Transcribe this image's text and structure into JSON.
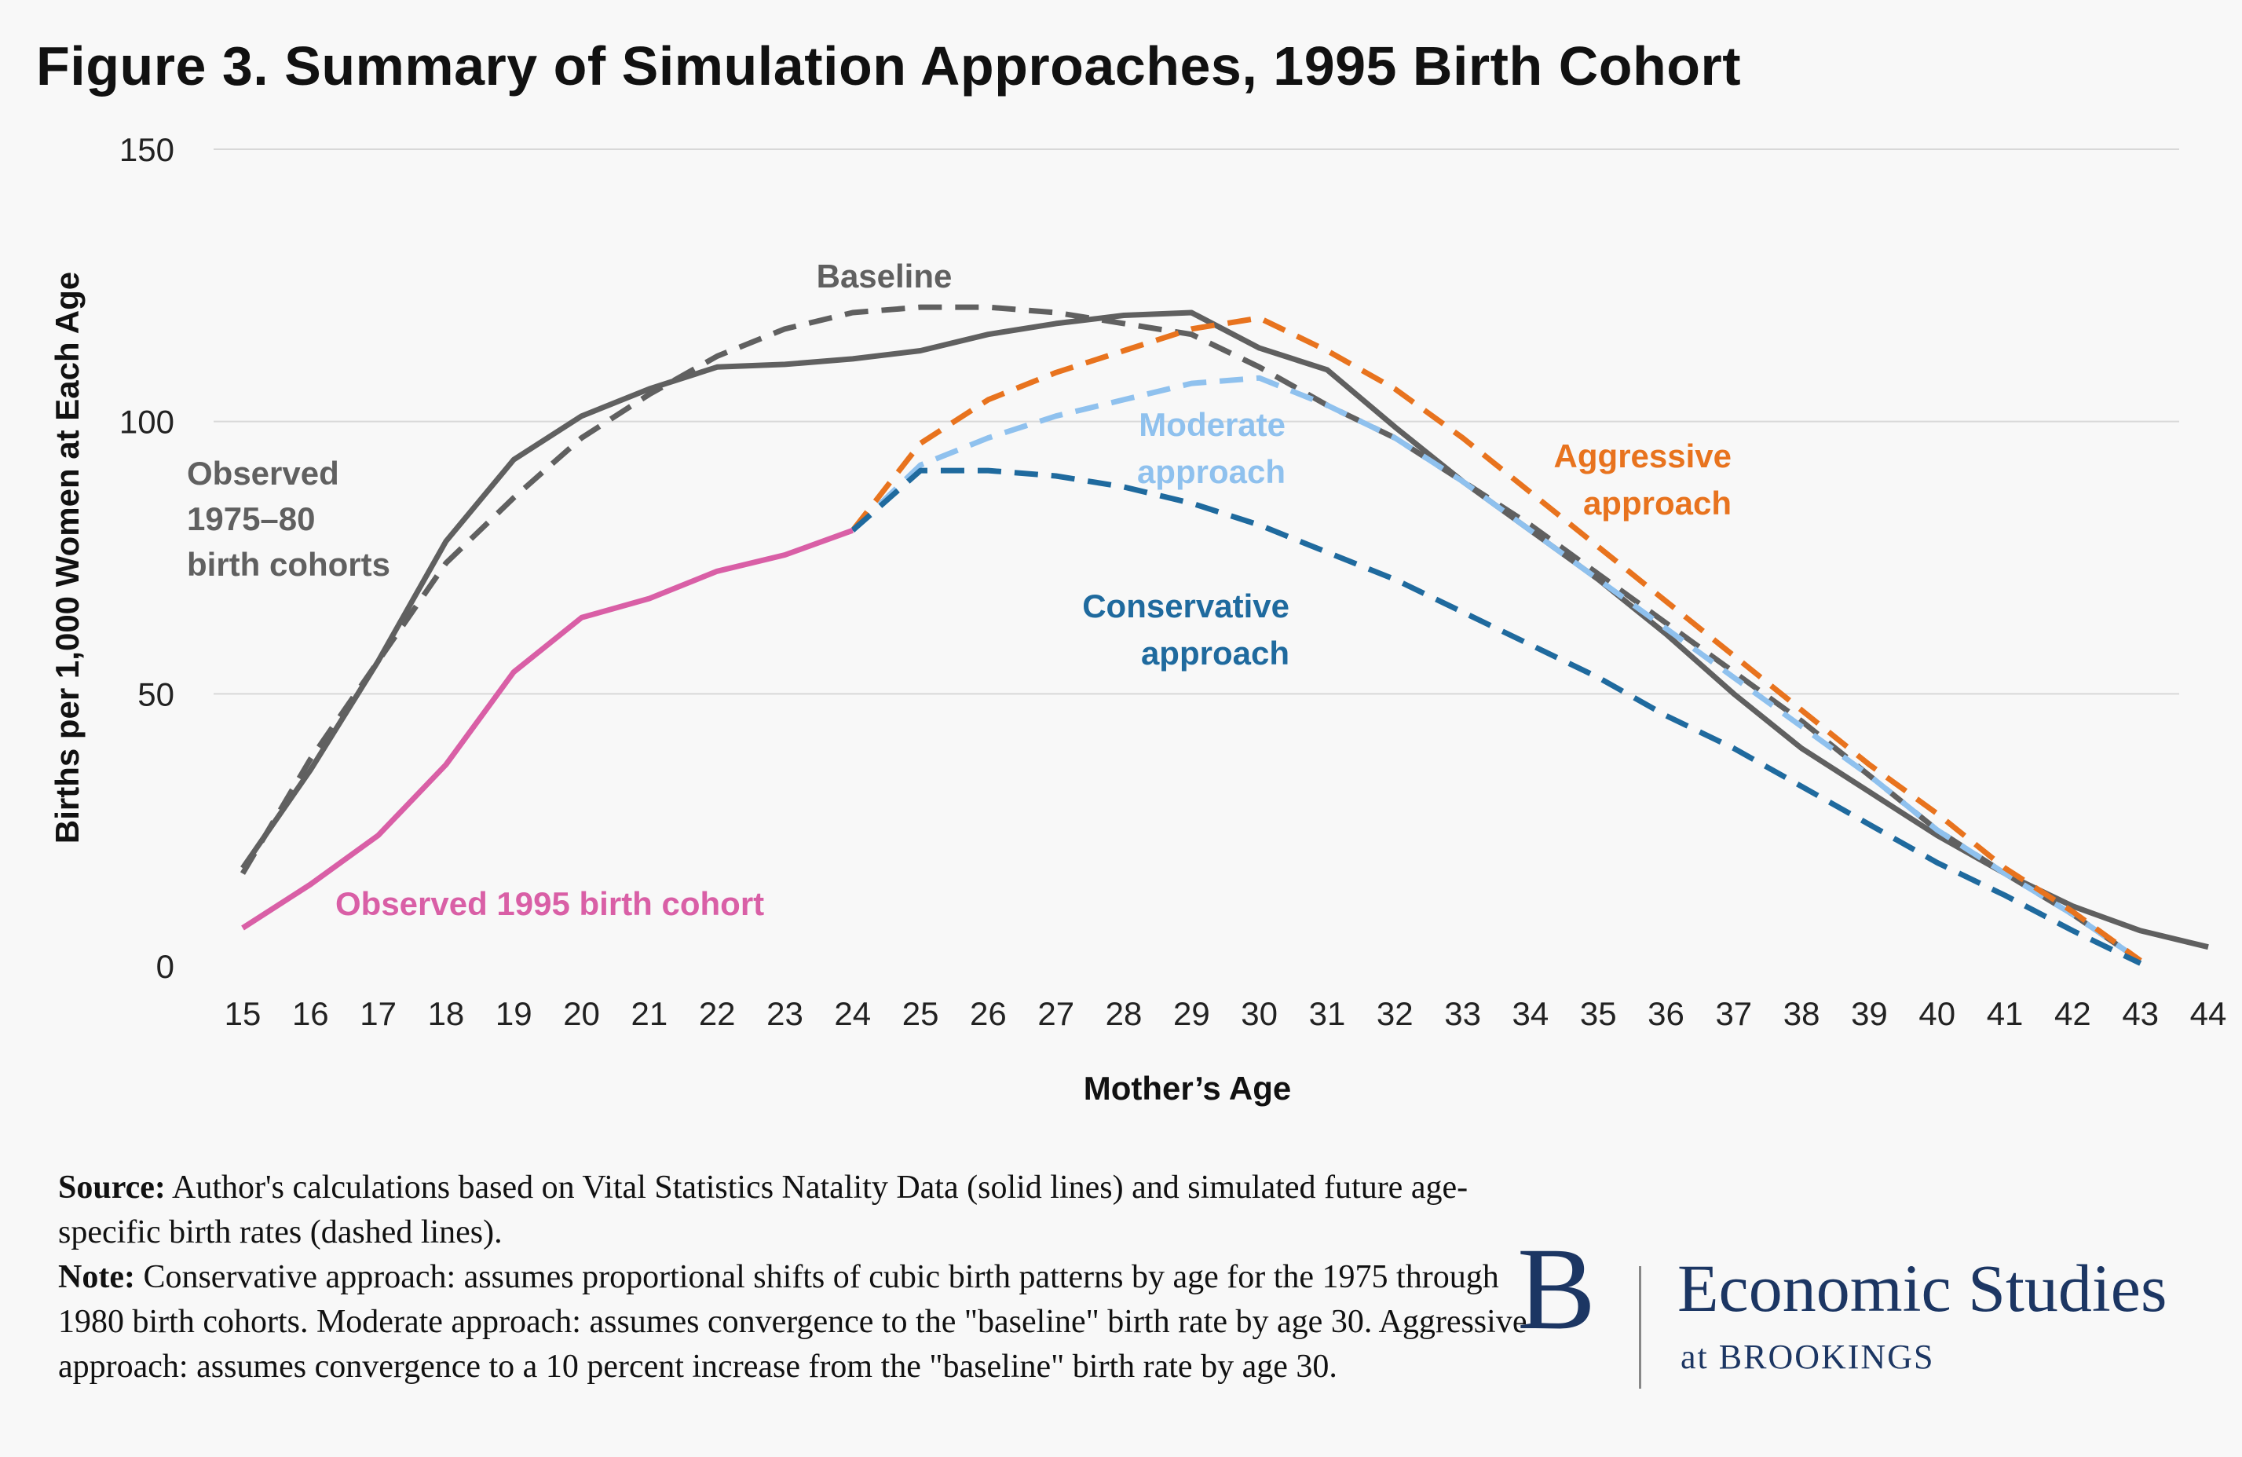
{
  "title": "Figure 3. Summary of Simulation Approaches, 1995 Birth Cohort",
  "notes": {
    "source_label": "Source:",
    "source_text": " Author's calculations based on Vital Statistics Natality Data (solid lines) and simulated future age-specific birth rates (dashed lines).",
    "note_label": "Note:",
    "note_text": " Conservative approach: assumes proportional shifts of cubic birth patterns by age for the 1975 through 1980 birth cohorts. Moderate approach: assumes convergence to the \"baseline\" birth rate by age 30. Aggressive approach: assumes convergence to a 10 percent increase from the \"baseline\" birth rate by age 30."
  },
  "logo": {
    "letter": "B",
    "main": "Economic Studies",
    "sub": "at BROOKINGS"
  },
  "chart_data": {
    "type": "line",
    "title": "Figure 3. Summary of Simulation Approaches, 1995 Birth Cohort",
    "xlabel": "Mother’s Age",
    "ylabel": "Births per 1,000 Women at Each Age",
    "xlim": [
      15,
      44
    ],
    "ylim": [
      0,
      150
    ],
    "yticks": [
      0,
      50,
      100,
      150
    ],
    "xticks": [
      15,
      16,
      17,
      18,
      19,
      20,
      21,
      22,
      23,
      24,
      25,
      26,
      27,
      28,
      29,
      30,
      31,
      32,
      33,
      34,
      35,
      36,
      37,
      38,
      39,
      40,
      41,
      42,
      43,
      44
    ],
    "grid": "horizontal",
    "legend": "inline labels",
    "series": [
      {
        "name": "Observed 1975–80 birth cohorts",
        "label_lines": [
          "Observed",
          "1975–80",
          "birth cohorts"
        ],
        "color": "#606060",
        "style": "solid",
        "x": [
          15,
          16,
          17,
          18,
          19,
          20,
          21,
          22,
          23,
          24,
          25,
          26,
          27,
          28,
          29,
          30,
          31,
          32,
          33,
          34,
          35,
          36,
          37,
          38,
          39,
          40,
          41,
          42,
          43,
          44
        ],
        "values": [
          18,
          36,
          56,
          78,
          93,
          101,
          106,
          110,
          110.5,
          111.5,
          113,
          116,
          118,
          119.5,
          120,
          113.5,
          109.5,
          99,
          89,
          80,
          71,
          61,
          50,
          40,
          32,
          24,
          17,
          11,
          6.5,
          3.5
        ]
      },
      {
        "name": "Baseline",
        "label_lines": [
          "Baseline"
        ],
        "color": "#606060",
        "style": "dashed",
        "x": [
          15,
          16,
          17,
          18,
          19,
          20,
          21,
          22,
          23,
          24,
          25,
          26,
          27,
          28,
          29,
          30,
          31,
          32,
          33,
          34,
          35,
          36,
          37,
          38,
          39,
          40,
          41,
          42,
          43
        ],
        "values": [
          17,
          38,
          56,
          74,
          86,
          97,
          105,
          112,
          117,
          120,
          121,
          121,
          120,
          118,
          116,
          110,
          103,
          97,
          89,
          81,
          72,
          63,
          54,
          45,
          35,
          25,
          17,
          9.5,
          1
        ]
      },
      {
        "name": "Observed 1995 birth cohort",
        "label_lines": [
          "Observed 1995 birth cohort"
        ],
        "color": "#d95fa6",
        "style": "solid",
        "x": [
          15,
          16,
          17,
          18,
          19,
          20,
          21,
          22,
          23,
          24
        ],
        "values": [
          7,
          15,
          24,
          37,
          54,
          64,
          67.5,
          72.5,
          75.5,
          80
        ]
      },
      {
        "name": "Conservative approach",
        "label_lines": [
          "Conservative",
          "approach"
        ],
        "color": "#1f6a9e",
        "style": "dashed",
        "x": [
          24,
          25,
          26,
          27,
          28,
          29,
          30,
          31,
          32,
          33,
          34,
          35,
          36,
          37,
          38,
          39,
          40,
          41,
          42,
          43
        ],
        "values": [
          80,
          91,
          91,
          90,
          88,
          85,
          81,
          76,
          71,
          65,
          59,
          53,
          46,
          40,
          33,
          26,
          19,
          13,
          6.5,
          0.5
        ]
      },
      {
        "name": "Moderate approach",
        "label_lines": [
          "Moderate",
          "approach"
        ],
        "color": "#8fc1ee",
        "style": "dashed",
        "x": [
          24,
          25,
          26,
          27,
          28,
          29,
          30,
          31,
          32,
          33,
          34,
          35,
          36,
          37,
          38,
          39,
          40,
          41,
          42,
          43
        ],
        "values": [
          80,
          92,
          97,
          101,
          104,
          107,
          108,
          103,
          97,
          89,
          80,
          71,
          62,
          53,
          44,
          35,
          25,
          17,
          9.5,
          1
        ]
      },
      {
        "name": "Aggressive approach",
        "label_lines": [
          "Aggressive",
          "approach"
        ],
        "color": "#e8731e",
        "style": "dashed",
        "x": [
          24,
          25,
          26,
          27,
          28,
          29,
          30,
          31,
          32,
          33,
          34,
          35,
          36,
          37,
          38,
          39,
          40,
          41,
          42,
          43
        ],
        "values": [
          80,
          96,
          104,
          109,
          113,
          117,
          119,
          113,
          106,
          97,
          87,
          77,
          67,
          57,
          47,
          37,
          28,
          18,
          10,
          1
        ]
      }
    ]
  }
}
